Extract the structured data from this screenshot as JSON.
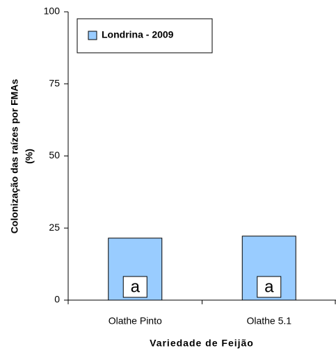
{
  "chart_data": {
    "type": "bar",
    "categories": [
      "Olathe Pinto",
      "Olathe 5.1"
    ],
    "series": [
      {
        "name": "Londrina - 2009",
        "color": "#99ccff",
        "values": [
          21.5,
          22.2
        ]
      }
    ],
    "annotations": [
      "a",
      "a"
    ],
    "ylabel": [
      "Colonização das raízes por FMAs",
      "(%)"
    ],
    "xlabel": "Variedade de Feijão",
    "ylim": [
      0,
      100
    ],
    "yticks": [
      0,
      25,
      50,
      75,
      100
    ],
    "grid": false,
    "legend": "top-left"
  }
}
